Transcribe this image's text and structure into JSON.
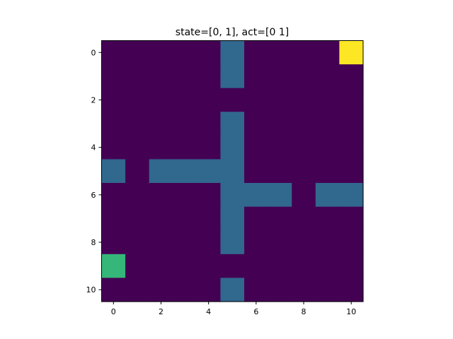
{
  "figure": {
    "title": "state=[0, 1], act=[0 1]"
  },
  "grid": {
    "rows": 11,
    "cols": 11,
    "colors": {
      "empty": "#440154",
      "wall": "#31688e",
      "agent": "#35b779",
      "goal": "#fde725"
    },
    "cells": [
      [
        "empty",
        "empty",
        "empty",
        "empty",
        "empty",
        "wall",
        "empty",
        "empty",
        "empty",
        "empty",
        "goal"
      ],
      [
        "empty",
        "empty",
        "empty",
        "empty",
        "empty",
        "wall",
        "empty",
        "empty",
        "empty",
        "empty",
        "empty"
      ],
      [
        "empty",
        "empty",
        "empty",
        "empty",
        "empty",
        "empty",
        "empty",
        "empty",
        "empty",
        "empty",
        "empty"
      ],
      [
        "empty",
        "empty",
        "empty",
        "empty",
        "empty",
        "wall",
        "empty",
        "empty",
        "empty",
        "empty",
        "empty"
      ],
      [
        "empty",
        "empty",
        "empty",
        "empty",
        "empty",
        "wall",
        "empty",
        "empty",
        "empty",
        "empty",
        "empty"
      ],
      [
        "wall",
        "empty",
        "wall",
        "wall",
        "wall",
        "wall",
        "empty",
        "empty",
        "empty",
        "empty",
        "empty"
      ],
      [
        "empty",
        "empty",
        "empty",
        "empty",
        "empty",
        "wall",
        "wall",
        "wall",
        "empty",
        "wall",
        "wall"
      ],
      [
        "empty",
        "empty",
        "empty",
        "empty",
        "empty",
        "wall",
        "empty",
        "empty",
        "empty",
        "empty",
        "empty"
      ],
      [
        "empty",
        "empty",
        "empty",
        "empty",
        "empty",
        "wall",
        "empty",
        "empty",
        "empty",
        "empty",
        "empty"
      ],
      [
        "agent",
        "empty",
        "empty",
        "empty",
        "empty",
        "empty",
        "empty",
        "empty",
        "empty",
        "empty",
        "empty"
      ],
      [
        "empty",
        "empty",
        "empty",
        "empty",
        "empty",
        "wall",
        "empty",
        "empty",
        "empty",
        "empty",
        "empty"
      ]
    ]
  },
  "axes": {
    "x_ticks": [
      "0",
      "2",
      "4",
      "6",
      "8",
      "10"
    ],
    "y_ticks": [
      "0",
      "2",
      "4",
      "6",
      "8",
      "10"
    ]
  }
}
